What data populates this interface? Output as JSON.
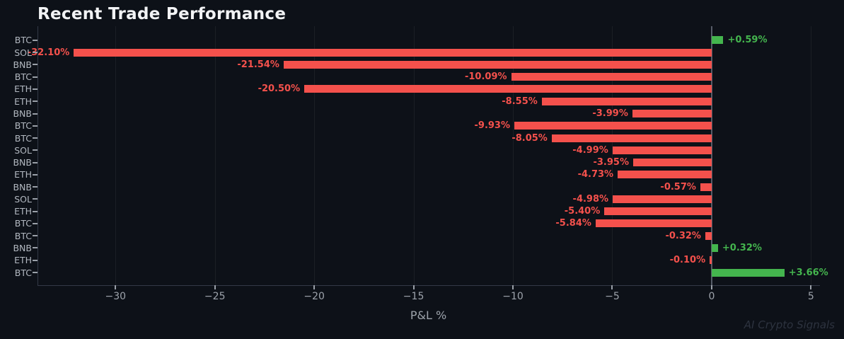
{
  "title": "Recent Trade Performance",
  "watermark": "AI Crypto Signals",
  "colors": {
    "background": "#0d1118",
    "positive": "#44b54e",
    "negative": "#f4514c",
    "title_text": "#f2f3f5",
    "tick_text": "#9da3ab",
    "category_text": "#b2b8c0",
    "grid": "rgba(255,255,255,0.06)",
    "zero_line": "#565c68",
    "spine": "#333947",
    "watermark_text": "#2d333f"
  },
  "chart_data": {
    "type": "bar",
    "orientation": "horizontal",
    "title": "Recent Trade Performance",
    "xlabel": "P&L %",
    "ylabel": "",
    "xlim": [
      -33.89,
      5.45
    ],
    "grid": "vertical-gridlines-at-ticks",
    "legend": "none",
    "xticks": [
      {
        "value": -30,
        "label": "−30"
      },
      {
        "value": -25,
        "label": "−25"
      },
      {
        "value": -20,
        "label": "−20"
      },
      {
        "value": -15,
        "label": "−15"
      },
      {
        "value": -10,
        "label": "−10"
      },
      {
        "value": -5,
        "label": "−5"
      },
      {
        "value": 0,
        "label": "0"
      },
      {
        "value": 5,
        "label": "5"
      }
    ],
    "rows": [
      {
        "asset": "BTC",
        "value": 0.59,
        "display": "+0.59%"
      },
      {
        "asset": "SOL",
        "value": -32.1,
        "display": "-32.10%"
      },
      {
        "asset": "BNB",
        "value": -21.54,
        "display": "-21.54%"
      },
      {
        "asset": "BTC",
        "value": -10.09,
        "display": "-10.09%"
      },
      {
        "asset": "ETH",
        "value": -20.5,
        "display": "-20.50%"
      },
      {
        "asset": "ETH",
        "value": -8.55,
        "display": "-8.55%"
      },
      {
        "asset": "BNB",
        "value": -3.99,
        "display": "-3.99%"
      },
      {
        "asset": "BTC",
        "value": -9.93,
        "display": "-9.93%"
      },
      {
        "asset": "BTC",
        "value": -8.05,
        "display": "-8.05%"
      },
      {
        "asset": "SOL",
        "value": -4.99,
        "display": "-4.99%"
      },
      {
        "asset": "BNB",
        "value": -3.95,
        "display": "-3.95%"
      },
      {
        "asset": "ETH",
        "value": -4.73,
        "display": "-4.73%"
      },
      {
        "asset": "BNB",
        "value": -0.57,
        "display": "-0.57%"
      },
      {
        "asset": "SOL",
        "value": -4.98,
        "display": "-4.98%"
      },
      {
        "asset": "ETH",
        "value": -5.4,
        "display": "-5.40%"
      },
      {
        "asset": "BTC",
        "value": -5.84,
        "display": "-5.84%"
      },
      {
        "asset": "BTC",
        "value": -0.32,
        "display": "-0.32%"
      },
      {
        "asset": "BNB",
        "value": 0.32,
        "display": "+0.32%"
      },
      {
        "asset": "ETH",
        "value": -0.1,
        "display": "-0.10%"
      },
      {
        "asset": "BTC",
        "value": 3.66,
        "display": "+3.66%"
      }
    ]
  }
}
